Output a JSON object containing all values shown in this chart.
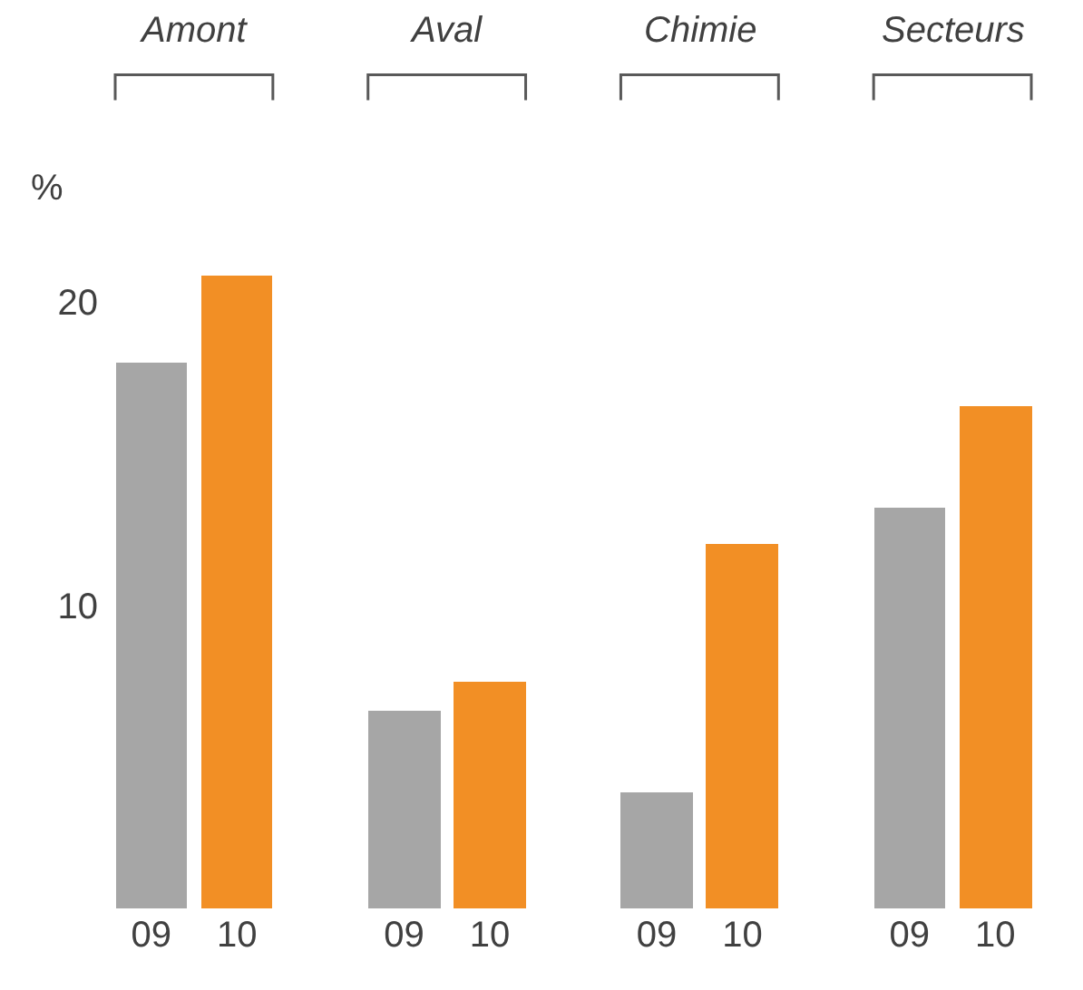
{
  "chart_data": {
    "type": "bar",
    "ylabel": "%",
    "categories": [
      "09",
      "10",
      "09",
      "10",
      "09",
      "10",
      "09",
      "10"
    ],
    "values": [
      18.0,
      20.9,
      6.5,
      7.5,
      3.8,
      12.0,
      13.2,
      16.6
    ],
    "colors": [
      "#a6a6a6",
      "#f28f25",
      "#a6a6a6",
      "#f28f25",
      "#a6a6a6",
      "#f28f25",
      "#a6a6a6",
      "#f28f25"
    ],
    "annotations": [
      "Amont",
      "Aval",
      "Chimie",
      "Secteurs"
    ],
    "ylim": [
      0,
      21
    ],
    "yticks": [
      10,
      20
    ]
  }
}
